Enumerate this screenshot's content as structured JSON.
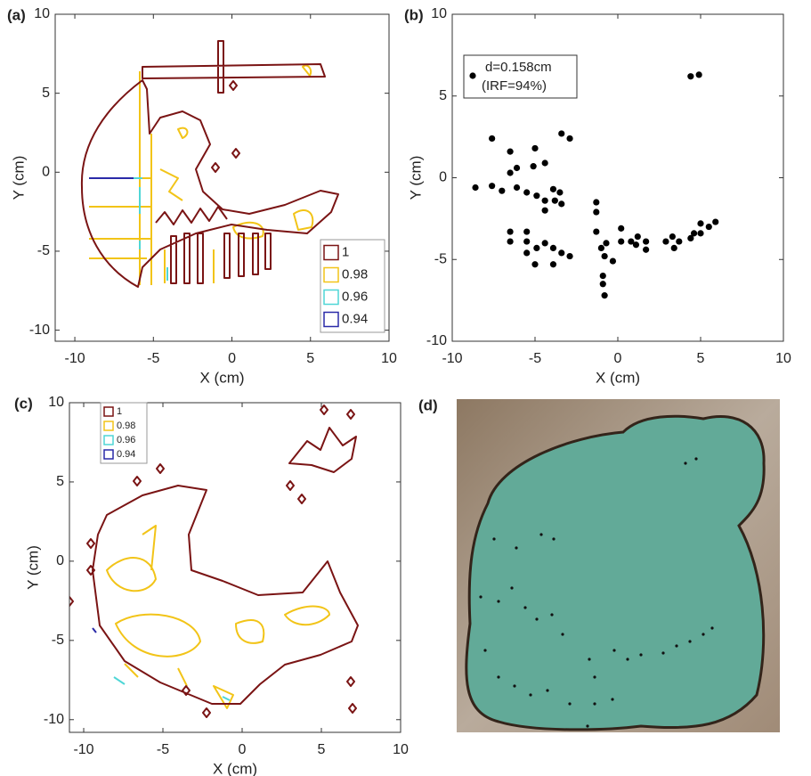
{
  "chart_data": [
    {
      "type": "contour",
      "panel_label": "(a)",
      "xlabel": "X (cm)",
      "ylabel": "Y (cm)",
      "xlim": [
        -11.25,
        10
      ],
      "ylim": [
        -10.7,
        10
      ],
      "xticks": [
        -10,
        -5,
        0,
        5,
        10
      ],
      "yticks": [
        -10,
        -5,
        0,
        5,
        10
      ],
      "levels": [
        1,
        0.98,
        0.96,
        0.94
      ],
      "colors": [
        "#7a1414",
        "#f2c418",
        "#4fd6d6",
        "#2a2aa8"
      ],
      "legend": "lower right"
    },
    {
      "type": "scatter",
      "panel_label": "(b)",
      "xlabel": "X (cm)",
      "ylabel": "Y (cm)",
      "xlim": [
        -10,
        10
      ],
      "ylim": [
        -10,
        10
      ],
      "xticks": [
        -10,
        -5,
        0,
        5,
        10
      ],
      "yticks": [
        -10,
        -5,
        0,
        5,
        10
      ],
      "annotation": [
        "d=0.158cm",
        "(IRF=94%)"
      ],
      "color": "#000000",
      "x": [
        4.4,
        4.9,
        -7.6,
        -6.5,
        -5.0,
        -4.4,
        -5.1,
        -6.1,
        -6.5,
        -3.4,
        -2.9,
        -8.6,
        -7.6,
        -7.0,
        -6.1,
        -5.5,
        -4.9,
        -4.4,
        -3.9,
        -3.5,
        -3.8,
        -4.4,
        -3.4,
        -6.5,
        -6.5,
        -5.5,
        -5.5,
        -5.5,
        -5.0,
        -4.9,
        -4.4,
        -3.9,
        -3.9,
        -2.9,
        -3.4,
        -1.3,
        -1.3,
        -1.3,
        -1.0,
        -0.7,
        -0.8,
        -0.3,
        -0.9,
        -0.9,
        -0.8,
        0.2,
        0.2,
        0.8,
        1.2,
        1.1,
        1.7,
        1.7,
        2.9,
        3.3,
        3.4,
        3.7,
        4.4,
        4.6,
        5.0,
        5.0,
        5.5,
        5.9
      ],
      "y": [
        6.2,
        6.3,
        2.4,
        1.6,
        1.8,
        0.9,
        0.7,
        0.6,
        0.3,
        2.7,
        2.4,
        -0.6,
        -0.5,
        -0.8,
        -0.6,
        -0.9,
        -1.1,
        -1.4,
        -0.7,
        -0.9,
        -1.4,
        -2.0,
        -1.6,
        -3.3,
        -3.9,
        -3.3,
        -3.9,
        -4.6,
        -5.3,
        -4.3,
        -4.0,
        -4.3,
        -5.3,
        -4.8,
        -4.6,
        -1.5,
        -2.1,
        -3.3,
        -4.3,
        -4.0,
        -4.8,
        -5.1,
        -6.0,
        -6.5,
        -7.2,
        -3.1,
        -3.9,
        -3.9,
        -3.6,
        -4.1,
        -3.9,
        -4.4,
        -3.9,
        -3.6,
        -4.3,
        -3.9,
        -3.7,
        -3.4,
        -2.8,
        -3.4,
        -3.0,
        -2.7
      ]
    },
    {
      "type": "contour",
      "panel_label": "(c)",
      "xlabel": "X (cm)",
      "ylabel": "Y (cm)",
      "xlim": [
        -10.9,
        10
      ],
      "ylim": [
        -10.8,
        10
      ],
      "xticks": [
        -10,
        -5,
        0,
        5,
        10
      ],
      "yticks": [
        -10,
        -5,
        0,
        5,
        10
      ],
      "levels": [
        1,
        0.98,
        0.96,
        0.94
      ],
      "colors": [
        "#7a1414",
        "#f2c418",
        "#4fd6d6",
        "#2a2aa8"
      ],
      "legend": "upper left"
    }
  ],
  "image": {
    "panel_label": "(d)"
  }
}
